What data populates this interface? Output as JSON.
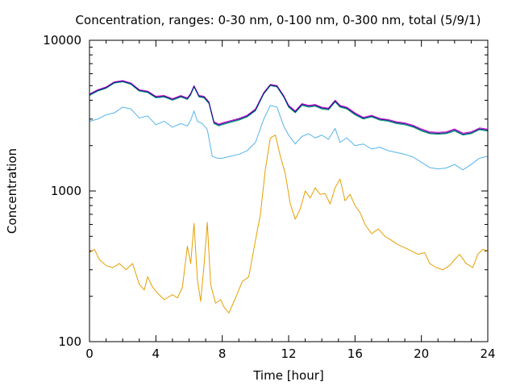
{
  "chart_data": {
    "type": "line",
    "title": "Concentration, ranges: 0-30 nm, 0-100 nm, 0-300 nm, total (5/9/1)",
    "xlabel": "Time [hour]",
    "ylabel": "Concentration",
    "xlim": [
      0,
      24
    ],
    "ylim": [
      100,
      10000
    ],
    "yscale": "log",
    "grid": false,
    "legend": "none",
    "x_ticks": [
      0,
      4,
      8,
      12,
      16,
      20,
      24
    ],
    "x_tick_labels": [
      "0",
      "4",
      "8",
      "12",
      "16",
      "20",
      "24"
    ],
    "y_ticks": [
      100,
      1000,
      10000
    ],
    "y_tick_labels": [
      "100",
      "1000",
      "10000"
    ],
    "series": [
      {
        "color": "#e69f00",
        "points": [
          [
            0,
            390
          ],
          [
            0.3,
            410
          ],
          [
            0.6,
            350
          ],
          [
            1,
            320
          ],
          [
            1.4,
            310
          ],
          [
            1.8,
            330
          ],
          [
            2.2,
            300
          ],
          [
            2.6,
            330
          ],
          [
            3.0,
            240
          ],
          [
            3.3,
            220
          ],
          [
            3.5,
            270
          ],
          [
            3.8,
            230
          ],
          [
            4.1,
            210
          ],
          [
            4.5,
            190
          ],
          [
            5.0,
            205
          ],
          [
            5.3,
            195
          ],
          [
            5.6,
            230
          ],
          [
            5.9,
            430
          ],
          [
            6.1,
            330
          ],
          [
            6.3,
            610
          ],
          [
            6.5,
            260
          ],
          [
            6.7,
            185
          ],
          [
            6.9,
            320
          ],
          [
            7.1,
            620
          ],
          [
            7.3,
            240
          ],
          [
            7.6,
            180
          ],
          [
            7.9,
            190
          ],
          [
            8.1,
            170
          ],
          [
            8.4,
            155
          ],
          [
            8.8,
            195
          ],
          [
            9.2,
            250
          ],
          [
            9.6,
            270
          ],
          [
            10.0,
            470
          ],
          [
            10.3,
            700
          ],
          [
            10.6,
            1400
          ],
          [
            10.9,
            2250
          ],
          [
            11.2,
            2350
          ],
          [
            11.5,
            1700
          ],
          [
            11.8,
            1300
          ],
          [
            12.1,
            820
          ],
          [
            12.4,
            650
          ],
          [
            12.7,
            760
          ],
          [
            13.0,
            1000
          ],
          [
            13.3,
            900
          ],
          [
            13.6,
            1050
          ],
          [
            13.9,
            950
          ],
          [
            14.2,
            960
          ],
          [
            14.5,
            820
          ],
          [
            14.8,
            1050
          ],
          [
            15.1,
            1200
          ],
          [
            15.4,
            860
          ],
          [
            15.7,
            950
          ],
          [
            16.0,
            800
          ],
          [
            16.3,
            720
          ],
          [
            16.6,
            600
          ],
          [
            17.0,
            520
          ],
          [
            17.4,
            560
          ],
          [
            17.8,
            500
          ],
          [
            18.2,
            470
          ],
          [
            18.6,
            440
          ],
          [
            19.0,
            420
          ],
          [
            19.4,
            400
          ],
          [
            19.8,
            380
          ],
          [
            20.2,
            390
          ],
          [
            20.5,
            330
          ],
          [
            20.9,
            310
          ],
          [
            21.3,
            300
          ],
          [
            21.7,
            320
          ],
          [
            22.0,
            350
          ],
          [
            22.3,
            380
          ],
          [
            22.7,
            330
          ],
          [
            23.1,
            310
          ],
          [
            23.4,
            380
          ],
          [
            23.7,
            410
          ],
          [
            24.0,
            400
          ]
        ]
      },
      {
        "color": "#56b4e9",
        "points": [
          [
            0,
            2900
          ],
          [
            0.5,
            3000
          ],
          [
            1.0,
            3200
          ],
          [
            1.5,
            3300
          ],
          [
            2.0,
            3600
          ],
          [
            2.5,
            3500
          ],
          [
            3.0,
            3050
          ],
          [
            3.5,
            3150
          ],
          [
            4.0,
            2750
          ],
          [
            4.5,
            2900
          ],
          [
            5.0,
            2650
          ],
          [
            5.5,
            2800
          ],
          [
            5.9,
            2700
          ],
          [
            6.1,
            2950
          ],
          [
            6.3,
            3400
          ],
          [
            6.5,
            2900
          ],
          [
            6.8,
            2800
          ],
          [
            7.1,
            2550
          ],
          [
            7.4,
            1700
          ],
          [
            7.7,
            1650
          ],
          [
            8.0,
            1650
          ],
          [
            8.5,
            1700
          ],
          [
            9.0,
            1750
          ],
          [
            9.5,
            1850
          ],
          [
            10.0,
            2100
          ],
          [
            10.5,
            3000
          ],
          [
            10.9,
            3700
          ],
          [
            11.3,
            3600
          ],
          [
            11.7,
            2700
          ],
          [
            12.0,
            2350
          ],
          [
            12.4,
            2050
          ],
          [
            12.8,
            2300
          ],
          [
            13.2,
            2400
          ],
          [
            13.6,
            2250
          ],
          [
            14.0,
            2350
          ],
          [
            14.4,
            2200
          ],
          [
            14.8,
            2600
          ],
          [
            15.1,
            2100
          ],
          [
            15.5,
            2250
          ],
          [
            16.0,
            2000
          ],
          [
            16.5,
            2050
          ],
          [
            17.0,
            1900
          ],
          [
            17.5,
            1950
          ],
          [
            18.0,
            1850
          ],
          [
            18.5,
            1800
          ],
          [
            19.0,
            1750
          ],
          [
            19.5,
            1680
          ],
          [
            20.0,
            1550
          ],
          [
            20.5,
            1430
          ],
          [
            21.0,
            1400
          ],
          [
            21.5,
            1420
          ],
          [
            22.0,
            1500
          ],
          [
            22.5,
            1380
          ],
          [
            23.0,
            1500
          ],
          [
            23.5,
            1650
          ],
          [
            24.0,
            1700
          ]
        ]
      },
      {
        "color": "#009e73",
        "points": [
          [
            0,
            4300
          ],
          [
            0.5,
            4600
          ],
          [
            1.0,
            4800
          ],
          [
            1.5,
            5200
          ],
          [
            2.0,
            5300
          ],
          [
            2.5,
            5100
          ],
          [
            3.0,
            4600
          ],
          [
            3.5,
            4500
          ],
          [
            4.0,
            4150
          ],
          [
            4.5,
            4200
          ],
          [
            5.0,
            4000
          ],
          [
            5.5,
            4200
          ],
          [
            5.9,
            4050
          ],
          [
            6.1,
            4350
          ],
          [
            6.3,
            4900
          ],
          [
            6.6,
            4200
          ],
          [
            6.9,
            4150
          ],
          [
            7.2,
            3800
          ],
          [
            7.5,
            2800
          ],
          [
            7.8,
            2700
          ],
          [
            8.0,
            2750
          ],
          [
            8.5,
            2850
          ],
          [
            9.0,
            2950
          ],
          [
            9.5,
            3100
          ],
          [
            10.0,
            3400
          ],
          [
            10.5,
            4400
          ],
          [
            10.9,
            5000
          ],
          [
            11.3,
            4900
          ],
          [
            11.7,
            4200
          ],
          [
            12.0,
            3600
          ],
          [
            12.4,
            3300
          ],
          [
            12.8,
            3700
          ],
          [
            13.2,
            3600
          ],
          [
            13.6,
            3650
          ],
          [
            14.0,
            3500
          ],
          [
            14.4,
            3450
          ],
          [
            14.8,
            3900
          ],
          [
            15.1,
            3600
          ],
          [
            15.5,
            3500
          ],
          [
            16.0,
            3200
          ],
          [
            16.5,
            3000
          ],
          [
            17.0,
            3100
          ],
          [
            17.5,
            2950
          ],
          [
            18.0,
            2900
          ],
          [
            18.5,
            2800
          ],
          [
            19.0,
            2750
          ],
          [
            19.5,
            2650
          ],
          [
            20.0,
            2500
          ],
          [
            20.5,
            2400
          ],
          [
            21.0,
            2380
          ],
          [
            21.5,
            2400
          ],
          [
            22.0,
            2500
          ],
          [
            22.5,
            2350
          ],
          [
            23.0,
            2400
          ],
          [
            23.5,
            2550
          ],
          [
            24.0,
            2500
          ]
        ]
      },
      {
        "color": "#cc00cc",
        "points": [
          [
            0,
            4400
          ],
          [
            0.5,
            4700
          ],
          [
            1.0,
            4900
          ],
          [
            1.5,
            5300
          ],
          [
            2.0,
            5400
          ],
          [
            2.5,
            5200
          ],
          [
            3.0,
            4700
          ],
          [
            3.5,
            4600
          ],
          [
            4.0,
            4250
          ],
          [
            4.5,
            4300
          ],
          [
            5.0,
            4100
          ],
          [
            5.5,
            4300
          ],
          [
            5.9,
            4150
          ],
          [
            6.1,
            4450
          ],
          [
            6.3,
            5000
          ],
          [
            6.6,
            4300
          ],
          [
            6.9,
            4250
          ],
          [
            7.2,
            3900
          ],
          [
            7.5,
            2880
          ],
          [
            7.8,
            2780
          ],
          [
            8.0,
            2830
          ],
          [
            8.5,
            2930
          ],
          [
            9.0,
            3030
          ],
          [
            9.5,
            3180
          ],
          [
            10.0,
            3500
          ],
          [
            10.5,
            4500
          ],
          [
            10.9,
            5100
          ],
          [
            11.3,
            5000
          ],
          [
            11.7,
            4300
          ],
          [
            12.0,
            3700
          ],
          [
            12.4,
            3400
          ],
          [
            12.8,
            3800
          ],
          [
            13.2,
            3700
          ],
          [
            13.6,
            3750
          ],
          [
            14.0,
            3600
          ],
          [
            14.4,
            3550
          ],
          [
            14.8,
            4000
          ],
          [
            15.1,
            3700
          ],
          [
            15.5,
            3600
          ],
          [
            16.0,
            3300
          ],
          [
            16.5,
            3080
          ],
          [
            17.0,
            3180
          ],
          [
            17.5,
            3030
          ],
          [
            18.0,
            2980
          ],
          [
            18.5,
            2880
          ],
          [
            19.0,
            2830
          ],
          [
            19.5,
            2730
          ],
          [
            20.0,
            2580
          ],
          [
            20.5,
            2470
          ],
          [
            21.0,
            2450
          ],
          [
            21.5,
            2470
          ],
          [
            22.0,
            2580
          ],
          [
            22.5,
            2420
          ],
          [
            23.0,
            2470
          ],
          [
            23.5,
            2620
          ],
          [
            24.0,
            2570
          ]
        ]
      },
      {
        "color": "#0b1a8a",
        "points": [
          [
            0,
            4350
          ],
          [
            0.5,
            4650
          ],
          [
            1.0,
            4850
          ],
          [
            1.5,
            5250
          ],
          [
            2.0,
            5350
          ],
          [
            2.5,
            5150
          ],
          [
            3.0,
            4650
          ],
          [
            3.5,
            4550
          ],
          [
            4.0,
            4200
          ],
          [
            4.5,
            4250
          ],
          [
            5.0,
            4050
          ],
          [
            5.5,
            4250
          ],
          [
            5.9,
            4100
          ],
          [
            6.1,
            4400
          ],
          [
            6.3,
            4950
          ],
          [
            6.6,
            4250
          ],
          [
            6.9,
            4200
          ],
          [
            7.2,
            3850
          ],
          [
            7.5,
            2840
          ],
          [
            7.8,
            2740
          ],
          [
            8.0,
            2790
          ],
          [
            8.5,
            2890
          ],
          [
            9.0,
            2990
          ],
          [
            9.5,
            3140
          ],
          [
            10.0,
            3450
          ],
          [
            10.5,
            4450
          ],
          [
            10.9,
            5050
          ],
          [
            11.3,
            4950
          ],
          [
            11.7,
            4250
          ],
          [
            12.0,
            3650
          ],
          [
            12.4,
            3350
          ],
          [
            12.8,
            3750
          ],
          [
            13.2,
            3650
          ],
          [
            13.6,
            3700
          ],
          [
            14.0,
            3550
          ],
          [
            14.4,
            3500
          ],
          [
            14.8,
            3950
          ],
          [
            15.1,
            3650
          ],
          [
            15.5,
            3550
          ],
          [
            16.0,
            3250
          ],
          [
            16.5,
            3040
          ],
          [
            17.0,
            3140
          ],
          [
            17.5,
            2990
          ],
          [
            18.0,
            2940
          ],
          [
            18.5,
            2840
          ],
          [
            19.0,
            2790
          ],
          [
            19.5,
            2690
          ],
          [
            20.0,
            2540
          ],
          [
            20.5,
            2430
          ],
          [
            21.0,
            2410
          ],
          [
            21.5,
            2430
          ],
          [
            22.0,
            2540
          ],
          [
            22.5,
            2380
          ],
          [
            23.0,
            2430
          ],
          [
            23.5,
            2580
          ],
          [
            24.0,
            2530
          ]
        ]
      }
    ]
  }
}
